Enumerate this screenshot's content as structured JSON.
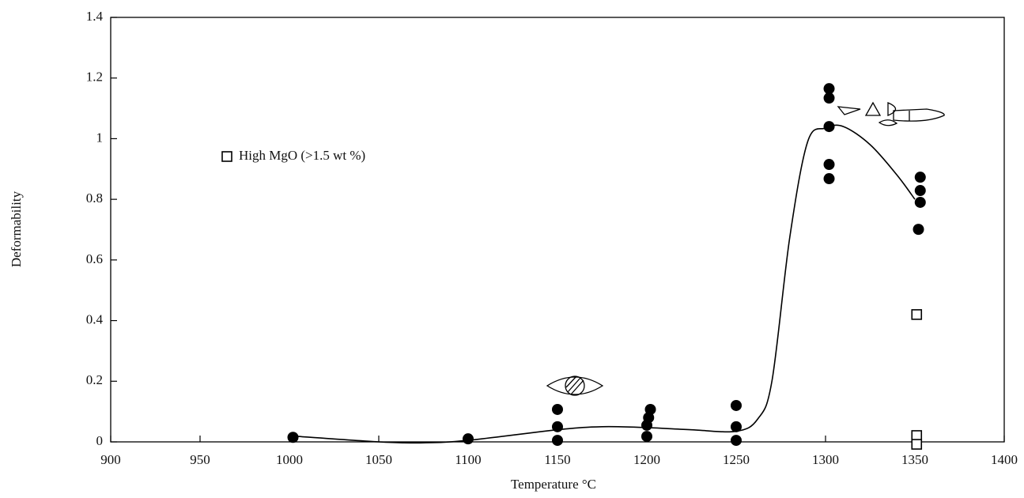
{
  "chart_data": {
    "type": "scatter",
    "xlabel": "Temperature °C",
    "ylabel": "Deformability",
    "xlim": [
      900,
      1400
    ],
    "xticks": [
      900,
      950,
      1000,
      1050,
      1100,
      1150,
      1200,
      1250,
      1300,
      1350,
      1400
    ],
    "ylim": [
      0,
      1.4
    ],
    "yticks": [
      0,
      0.2,
      0.4,
      0.6,
      0.8,
      1,
      1.2,
      1.4
    ],
    "legend": "upper left",
    "series": [
      {
        "marker": "filled-circle",
        "color": "#000000",
        "x": [
          1002,
          1100,
          1150,
          1150,
          1150,
          1202,
          1201,
          1200,
          1200,
          1250,
          1250,
          1250,
          1302,
          1302,
          1302,
          1302,
          1302,
          1353,
          1353,
          1353,
          1352
        ],
        "values": [
          0.015,
          0.01,
          0.107,
          0.05,
          0.005,
          0.107,
          0.08,
          0.055,
          0.018,
          0.12,
          0.05,
          0.005,
          1.165,
          1.134,
          1.04,
          0.915,
          0.868,
          0.873,
          0.829,
          0.79,
          0.701
        ]
      },
      {
        "name": "High MgO (>1.5 wt %)",
        "marker": "open-square",
        "color": "#000000",
        "x": [
          1351,
          1351,
          1351
        ],
        "values": [
          0.42,
          0.021,
          -0.008
        ]
      },
      {
        "type": "line",
        "color": "#000000",
        "x": [
          1000,
          1050,
          1075,
          1100,
          1150,
          1175,
          1200,
          1225,
          1250,
          1262,
          1270,
          1280,
          1290,
          1300,
          1310,
          1325,
          1340,
          1350
        ],
        "values": [
          0.02,
          0.0,
          -0.003,
          0.005,
          0.04,
          0.05,
          0.047,
          0.04,
          0.035,
          0.075,
          0.2,
          0.675,
          0.99,
          1.035,
          1.04,
          0.98,
          0.88,
          0.8
        ]
      }
    ]
  }
}
